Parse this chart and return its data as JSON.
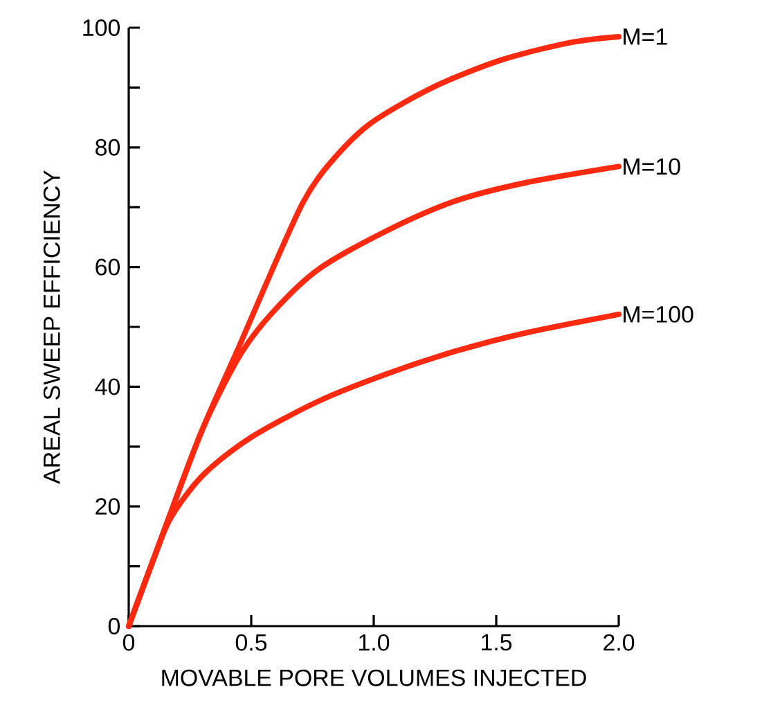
{
  "chart_data": {
    "type": "line",
    "xlabel": "MOVABLE PORE VOLUMES INJECTED",
    "ylabel": "AREAL SWEEP EFFICIENCY",
    "xlim": [
      0,
      2.0
    ],
    "ylim": [
      0,
      100
    ],
    "xticks": [
      0,
      0.5,
      {
        "value": 1.0,
        "label": "1.0"
      },
      1.5,
      {
        "value": 2.0,
        "label": "2.0"
      }
    ],
    "yticks": [
      0,
      {
        "value": 10,
        "label": null
      },
      20,
      {
        "value": 30,
        "label": null
      },
      40,
      {
        "value": 50,
        "label": null
      },
      60,
      {
        "value": 70,
        "label": null
      },
      80,
      {
        "value": 90,
        "label": null
      },
      100
    ],
    "grid": false,
    "legend": false,
    "marker": "none",
    "line_style": "solid",
    "series": [
      {
        "name": "M=1",
        "color": "#ff2a10",
        "x": [
          0,
          0.15,
          0.3,
          0.45,
          0.58,
          0.71,
          0.81,
          0.98,
          1.24,
          1.52,
          1.8,
          2.0
        ],
        "values": [
          0,
          16.6,
          32.8,
          46.7,
          59,
          70.7,
          76.8,
          83.8,
          90,
          94.6,
          97.5,
          98.5
        ]
      },
      {
        "name": "M=10",
        "color": "#ff2a10",
        "x": [
          0,
          0.15,
          0.3,
          0.45,
          0.58,
          0.77,
          1.05,
          1.33,
          1.62,
          2.0
        ],
        "values": [
          0,
          16.6,
          32.8,
          45,
          52.1,
          59.5,
          66,
          71,
          74.1,
          76.8
        ]
      },
      {
        "name": "M=100",
        "color": "#ff2a10",
        "x": [
          0,
          0.1,
          0.17,
          0.3,
          0.49,
          0.77,
          1.05,
          1.33,
          1.62,
          2.0
        ],
        "values": [
          0,
          11,
          18,
          25.1,
          31.3,
          37.5,
          42.1,
          45.9,
          49,
          52.1
        ]
      }
    ]
  }
}
